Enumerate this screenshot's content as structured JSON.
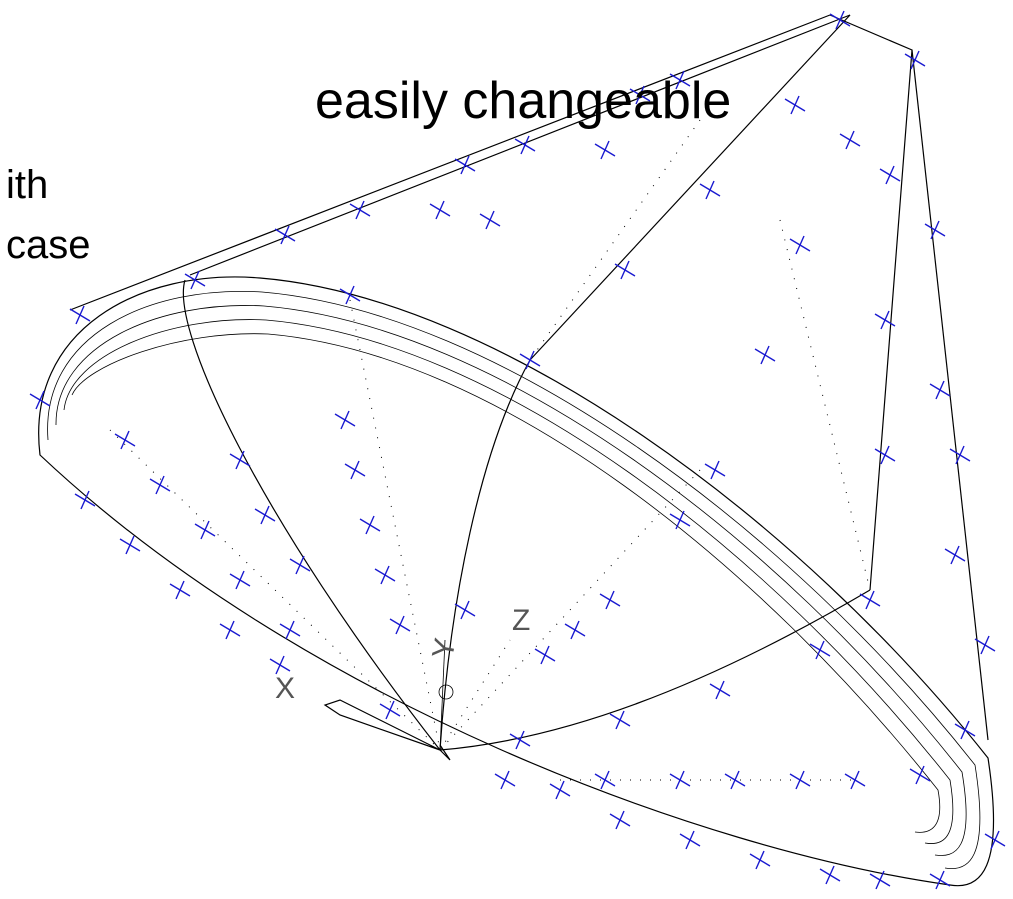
{
  "slide": {
    "heading": "easily changeable",
    "line1": "ith",
    "line2": "case"
  },
  "axes": {
    "x": "X",
    "y": "Y",
    "z": "Z"
  }
}
